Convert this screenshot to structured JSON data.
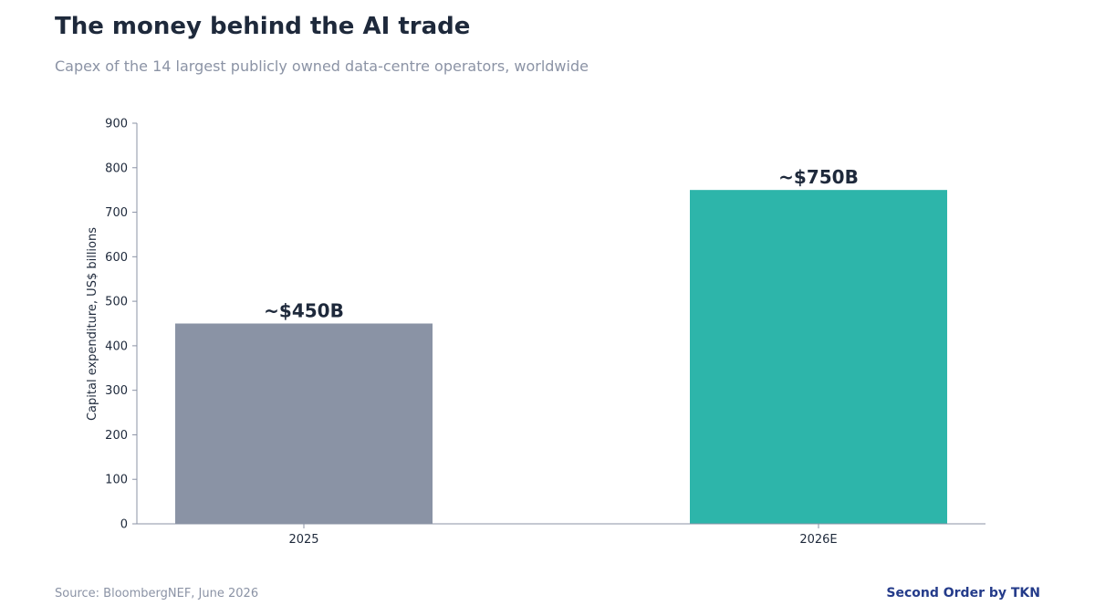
{
  "header": {
    "title": "The money behind the AI trade",
    "subtitle": "Capex of the 14 largest publicly owned data-centre operators, worldwide"
  },
  "footer": {
    "source": "Source: BloombergNEF, June 2026",
    "brand": "Second Order by TKN"
  },
  "chart_data": {
    "type": "bar",
    "title": "The money behind the AI trade",
    "subtitle": "Capex of the 14 largest publicly owned data-centre operators, worldwide",
    "categories": [
      "2025",
      "2026E"
    ],
    "values": [
      450,
      750
    ],
    "data_labels": [
      "~$450B",
      "~$750B"
    ],
    "bar_colors": [
      "#8a93a5",
      "#2db5aa"
    ],
    "xlabel": "",
    "ylabel": "Capital expenditure, US$ billions",
    "ylim": [
      0,
      900
    ],
    "yticks": [
      0,
      100,
      200,
      300,
      400,
      500,
      600,
      700,
      800,
      900
    ],
    "grid": false,
    "legend": "none"
  }
}
